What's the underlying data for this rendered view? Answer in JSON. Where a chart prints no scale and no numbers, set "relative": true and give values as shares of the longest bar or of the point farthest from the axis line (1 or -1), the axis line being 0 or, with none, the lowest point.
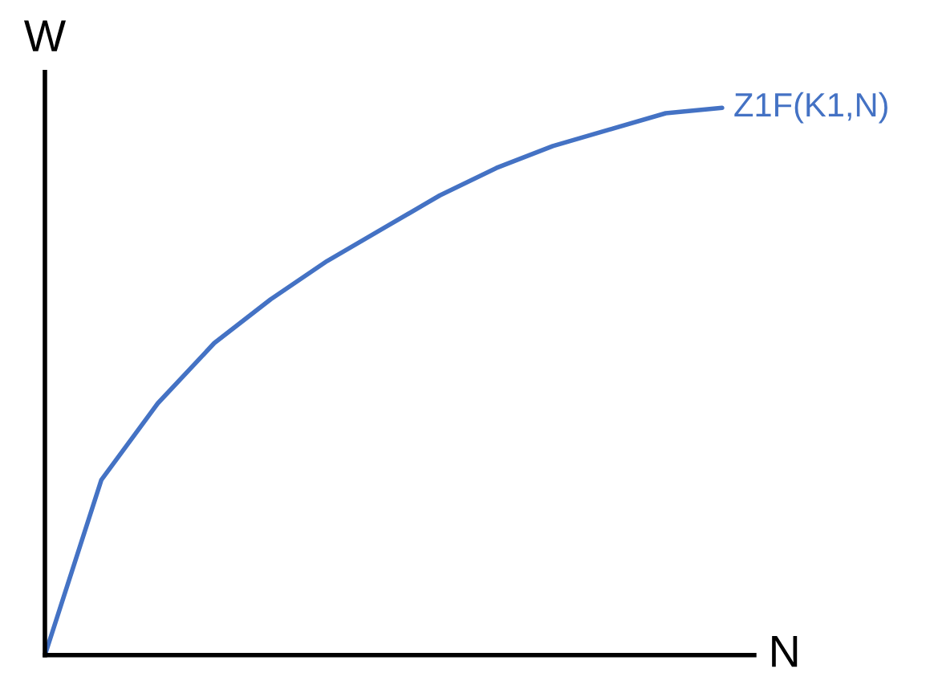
{
  "chart_data": {
    "type": "line",
    "relative": true,
    "xlabel": "N",
    "ylabel": "W",
    "categories": [
      null,
      null,
      null,
      null,
      null,
      null,
      null,
      null,
      null,
      null,
      null,
      null,
      null
    ],
    "series": [
      {
        "name": "Z1F(K1,N)",
        "color": "#4472c4",
        "values": [
          0,
          0.32,
          0.46,
          0.57,
          0.65,
          0.72,
          0.78,
          0.84,
          0.89,
          0.93,
          0.96,
          0.99,
          1
        ]
      }
    ],
    "legend": false,
    "marker": "none",
    "line_style": "solid"
  }
}
